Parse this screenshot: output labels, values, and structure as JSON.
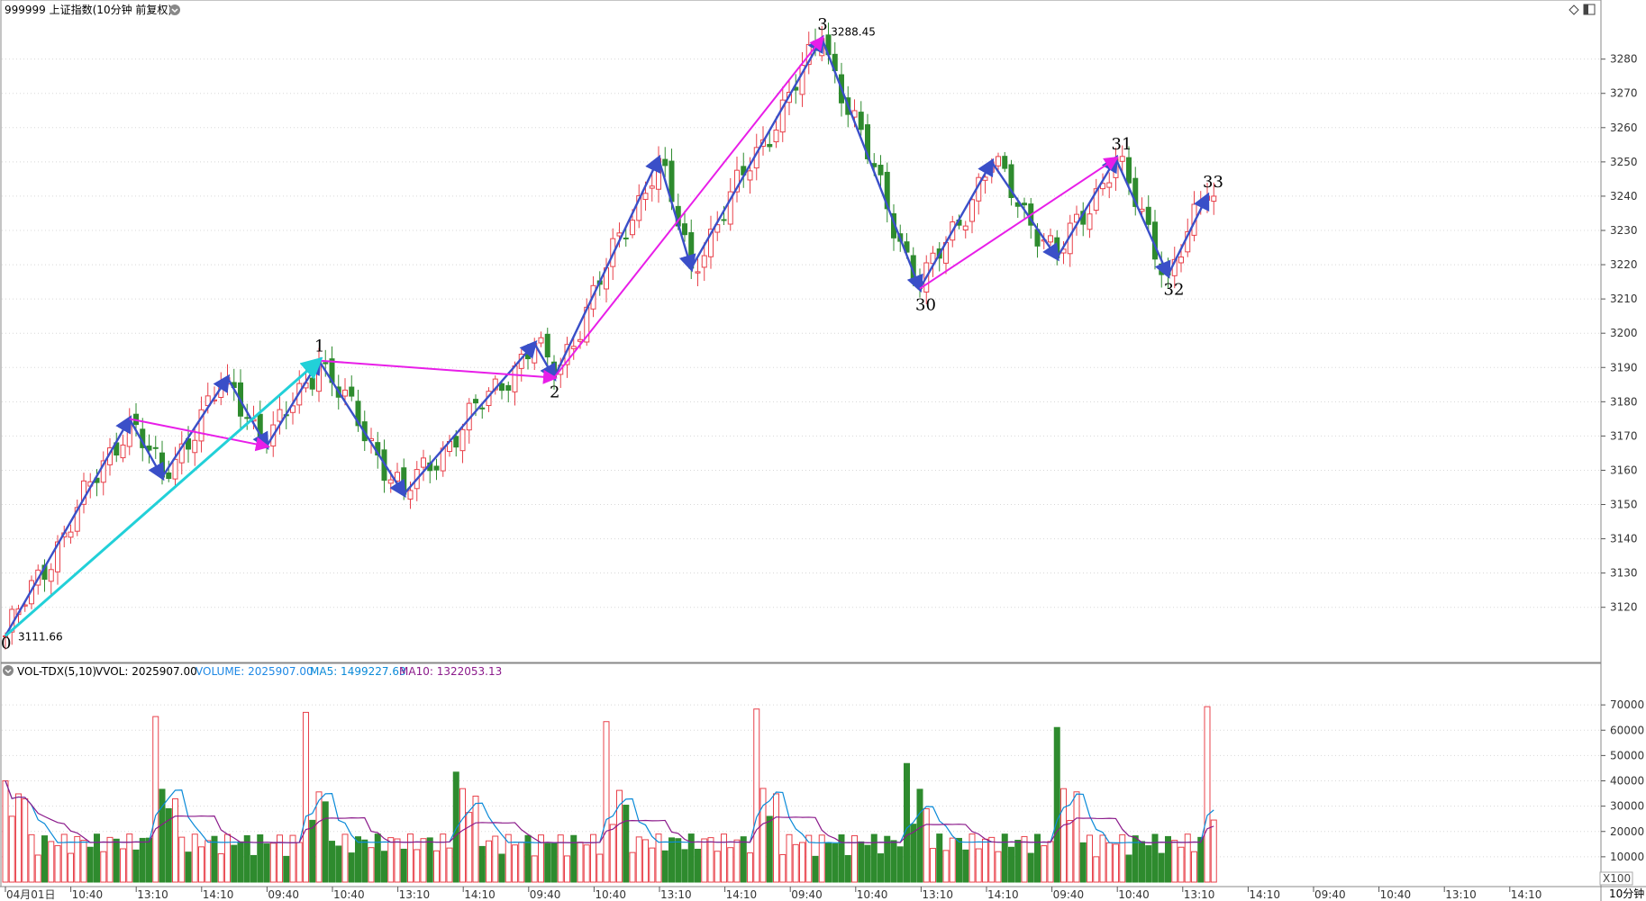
{
  "header": {
    "title": "999999 上证指数(10分钟 前复权)"
  },
  "volume_panel": {
    "indicator": "VOL-TDX(5,10)",
    "vvol_label": "VVOL: 2025907.00",
    "volume_label": "VOLUME: 2025907.00",
    "ma5_label": "MA5: 1499227.63",
    "ma10_label": "MA10: 1322053.13",
    "unit": "X100",
    "colors": {
      "volume": "#1e88e5",
      "ma5": "#0a8ad8",
      "ma10": "#8b1a8b"
    }
  },
  "period_label": "10分钟",
  "colors": {
    "up": "#e8404a",
    "down": "#2e8b2e",
    "wave": "#3a4fc8",
    "trend": "#e81ee8",
    "trend2": "#22d0d8"
  },
  "chart_data": {
    "type": "candlestick",
    "price_ticks": [
      3120,
      3130,
      3140,
      3150,
      3160,
      3170,
      3180,
      3190,
      3200,
      3210,
      3220,
      3230,
      3240,
      3250,
      3260,
      3270,
      3280
    ],
    "volume_ticks": [
      10000,
      20000,
      30000,
      40000,
      50000,
      60000,
      70000
    ],
    "ylim_price": [
      3106,
      3292
    ],
    "ylim_volume": [
      0,
      80000
    ],
    "x_time_labels": [
      "04月01日",
      "10:40",
      "13:10",
      "14:10",
      "09:40",
      "10:40",
      "13:10",
      "14:10",
      "09:40",
      "10:40",
      "13:10",
      "14:10",
      "09:40",
      "10:40",
      "13:10",
      "14:10",
      "09:40",
      "10:40",
      "13:10",
      "14:10",
      "09:40",
      "10:40",
      "13:10",
      "14:10"
    ],
    "annotations": {
      "high_label": "3288.45",
      "low_label": "3111.66",
      "wave_numbers": [
        "0",
        "1",
        "2",
        "3",
        "30",
        "31",
        "32",
        "33"
      ]
    },
    "pivots": [
      {
        "i": 0,
        "p": 3111.66
      },
      {
        "i": 19,
        "p": 3175
      },
      {
        "i": 24,
        "p": 3158
      },
      {
        "i": 34,
        "p": 3187
      },
      {
        "i": 40,
        "p": 3167
      },
      {
        "i": 48,
        "p": 3192
      },
      {
        "i": 61,
        "p": 3153
      },
      {
        "i": 81,
        "p": 3197
      },
      {
        "i": 84,
        "p": 3187
      },
      {
        "i": 100,
        "p": 3251
      },
      {
        "i": 105,
        "p": 3219
      },
      {
        "i": 125,
        "p": 3286
      },
      {
        "i": 140,
        "p": 3213
      },
      {
        "i": 151,
        "p": 3250
      },
      {
        "i": 161,
        "p": 3222
      },
      {
        "i": 170,
        "p": 3251
      },
      {
        "i": 178,
        "p": 3217
      },
      {
        "i": 184,
        "p": 3240
      }
    ],
    "volume_max": 77000
  }
}
